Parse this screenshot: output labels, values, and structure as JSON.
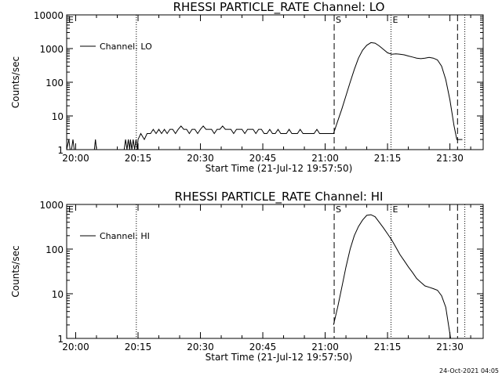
{
  "footer": {
    "timestamp": "24-Oct-2021 04:05"
  },
  "chart_data": [
    {
      "type": "line",
      "title": "RHESSI PARTICLE_RATE Channel: LO",
      "xlabel": "Start Time (21-Jul-12 19:57:50)",
      "ylabel": "Counts/sec",
      "yscale": "log",
      "ylim": [
        1,
        10000
      ],
      "xlim": [
        "19:57:50",
        "21:38:00"
      ],
      "x_ticks": [
        "20:00",
        "20:15",
        "20:30",
        "20:45",
        "21:00",
        "21:15",
        "21:30"
      ],
      "y_ticks": [
        "1",
        "10",
        "100",
        "1000",
        "10000"
      ],
      "legend": {
        "label": "Channel: LO",
        "position": "top-left"
      },
      "markers": [
        {
          "label": "E",
          "time": "19:57:50",
          "style": "dotted"
        },
        {
          "label": "",
          "time": "20:14:35",
          "style": "dotted"
        },
        {
          "label": "S",
          "time": "21:02:10",
          "style": "dashed"
        },
        {
          "label": "E",
          "time": "21:15:50",
          "style": "dotted"
        },
        {
          "label": "",
          "time": "21:31:50",
          "style": "dashed"
        },
        {
          "label": "",
          "time": "21:33:35",
          "style": "dotted"
        }
      ],
      "series": [
        {
          "name": "Channel: LO",
          "points": [
            [
              "19:57:50",
              1
            ],
            [
              "19:58:20",
              2
            ],
            [
              "19:58:40",
              1
            ],
            [
              "19:59:00",
              1
            ],
            [
              "19:59:20",
              2
            ],
            [
              "19:59:40",
              1
            ],
            [
              "20:02:00",
              1
            ],
            [
              "20:04:30",
              1
            ],
            [
              "20:04:45",
              2
            ],
            [
              "20:05:00",
              1
            ],
            [
              "20:11:40",
              1
            ],
            [
              "20:12:00",
              2
            ],
            [
              "20:12:20",
              1
            ],
            [
              "20:12:40",
              2
            ],
            [
              "20:13:00",
              1
            ],
            [
              "20:13:10",
              2
            ],
            [
              "20:13:30",
              1
            ],
            [
              "20:13:50",
              2
            ],
            [
              "20:14:10",
              1
            ],
            [
              "20:14:30",
              2
            ],
            [
              "20:14:50",
              1
            ],
            [
              "20:15:00",
              2
            ],
            [
              "20:15:40",
              3
            ],
            [
              "20:16:30",
              2
            ],
            [
              "20:17:10",
              3
            ],
            [
              "20:18:00",
              3
            ],
            [
              "20:18:40",
              4
            ],
            [
              "20:19:20",
              3
            ],
            [
              "20:20:00",
              4
            ],
            [
              "20:20:40",
              3
            ],
            [
              "20:21:20",
              4
            ],
            [
              "20:22:00",
              3
            ],
            [
              "20:22:40",
              4
            ],
            [
              "20:23:20",
              4
            ],
            [
              "20:24:00",
              3
            ],
            [
              "20:24:40",
              4
            ],
            [
              "20:25:20",
              5
            ],
            [
              "20:26:00",
              4
            ],
            [
              "20:26:40",
              4
            ],
            [
              "20:27:20",
              3
            ],
            [
              "20:28:00",
              4
            ],
            [
              "20:28:40",
              4
            ],
            [
              "20:29:20",
              3
            ],
            [
              "20:30:00",
              4
            ],
            [
              "20:30:40",
              5
            ],
            [
              "20:31:20",
              4
            ],
            [
              "20:32:00",
              4
            ],
            [
              "20:32:40",
              4
            ],
            [
              "20:33:20",
              3
            ],
            [
              "20:34:00",
              4
            ],
            [
              "20:34:40",
              4
            ],
            [
              "20:35:20",
              5
            ],
            [
              "20:36:00",
              4
            ],
            [
              "20:36:40",
              4
            ],
            [
              "20:37:20",
              4
            ],
            [
              "20:38:00",
              3
            ],
            [
              "20:38:40",
              4
            ],
            [
              "20:39:20",
              4
            ],
            [
              "20:40:00",
              4
            ],
            [
              "20:40:40",
              3
            ],
            [
              "20:41:20",
              4
            ],
            [
              "20:42:00",
              4
            ],
            [
              "20:42:40",
              4
            ],
            [
              "20:43:20",
              3
            ],
            [
              "20:44:00",
              4
            ],
            [
              "20:44:40",
              4
            ],
            [
              "20:45:20",
              3
            ],
            [
              "20:46:00",
              3
            ],
            [
              "20:46:40",
              4
            ],
            [
              "20:47:20",
              3
            ],
            [
              "20:48:00",
              3
            ],
            [
              "20:48:40",
              4
            ],
            [
              "20:49:20",
              3
            ],
            [
              "20:50:00",
              3
            ],
            [
              "20:50:40",
              3
            ],
            [
              "20:51:20",
              4
            ],
            [
              "20:52:00",
              3
            ],
            [
              "20:52:40",
              3
            ],
            [
              "20:53:20",
              3
            ],
            [
              "20:54:00",
              4
            ],
            [
              "20:54:40",
              3
            ],
            [
              "20:55:20",
              3
            ],
            [
              "20:56:00",
              3
            ],
            [
              "20:56:40",
              3
            ],
            [
              "20:57:20",
              3
            ],
            [
              "20:58:00",
              4
            ],
            [
              "20:58:40",
              3
            ],
            [
              "20:59:20",
              3
            ],
            [
              "21:00:00",
              3
            ],
            [
              "21:00:40",
              3
            ],
            [
              "21:01:20",
              3
            ],
            [
              "21:02:00",
              3
            ],
            [
              "21:03:00",
              7
            ],
            [
              "21:04:00",
              16
            ],
            [
              "21:05:00",
              40
            ],
            [
              "21:06:00",
              100
            ],
            [
              "21:07:00",
              240
            ],
            [
              "21:08:00",
              520
            ],
            [
              "21:09:00",
              900
            ],
            [
              "21:10:00",
              1250
            ],
            [
              "21:11:00",
              1500
            ],
            [
              "21:12:00",
              1450
            ],
            [
              "21:13:00",
              1200
            ],
            [
              "21:14:00",
              950
            ],
            [
              "21:15:00",
              750
            ],
            [
              "21:16:00",
              680
            ],
            [
              "21:17:00",
              700
            ],
            [
              "21:18:00",
              680
            ],
            [
              "21:19:00",
              650
            ],
            [
              "21:20:00",
              600
            ],
            [
              "21:21:00",
              560
            ],
            [
              "21:22:00",
              520
            ],
            [
              "21:23:00",
              500
            ],
            [
              "21:24:00",
              520
            ],
            [
              "21:25:00",
              550
            ],
            [
              "21:26:00",
              520
            ],
            [
              "21:27:00",
              460
            ],
            [
              "21:28:00",
              300
            ],
            [
              "21:29:00",
              120
            ],
            [
              "21:30:00",
              30
            ],
            [
              "21:31:00",
              5
            ],
            [
              "21:31:40",
              2
            ],
            [
              "21:33:00",
              2
            ]
          ]
        }
      ]
    },
    {
      "type": "line",
      "title": "RHESSI PARTICLE_RATE Channel: HI",
      "xlabel": "Start Time (21-Jul-12 19:57:50)",
      "ylabel": "Counts/sec",
      "yscale": "log",
      "ylim": [
        1,
        1000
      ],
      "xlim": [
        "19:57:50",
        "21:38:00"
      ],
      "x_ticks": [
        "20:00",
        "20:15",
        "20:30",
        "20:45",
        "21:00",
        "21:15",
        "21:30"
      ],
      "y_ticks": [
        "1",
        "10",
        "100",
        "1000"
      ],
      "legend": {
        "label": "Channel: HI",
        "position": "top-left"
      },
      "markers": [
        {
          "label": "E",
          "time": "19:57:50",
          "style": "dotted"
        },
        {
          "label": "",
          "time": "20:14:35",
          "style": "dotted"
        },
        {
          "label": "S",
          "time": "21:02:10",
          "style": "dashed"
        },
        {
          "label": "E",
          "time": "21:15:50",
          "style": "dotted"
        },
        {
          "label": "",
          "time": "21:31:50",
          "style": "dashed"
        },
        {
          "label": "",
          "time": "21:33:35",
          "style": "dotted"
        }
      ],
      "series": [
        {
          "name": "Channel: HI",
          "points": [
            [
              "21:02:00",
              2
            ],
            [
              "21:03:00",
              5
            ],
            [
              "21:04:00",
              14
            ],
            [
              "21:05:00",
              40
            ],
            [
              "21:06:00",
              100
            ],
            [
              "21:07:00",
              200
            ],
            [
              "21:08:00",
              320
            ],
            [
              "21:09:00",
              450
            ],
            [
              "21:10:00",
              570
            ],
            [
              "21:11:00",
              590
            ],
            [
              "21:12:00",
              530
            ],
            [
              "21:13:00",
              400
            ],
            [
              "21:14:00",
              300
            ],
            [
              "21:15:00",
              220
            ],
            [
              "21:16:00",
              160
            ],
            [
              "21:17:00",
              110
            ],
            [
              "21:18:00",
              75
            ],
            [
              "21:19:00",
              55
            ],
            [
              "21:20:00",
              40
            ],
            [
              "21:21:00",
              30
            ],
            [
              "21:22:00",
              22
            ],
            [
              "21:23:00",
              18
            ],
            [
              "21:24:00",
              15
            ],
            [
              "21:25:00",
              14
            ],
            [
              "21:26:00",
              13
            ],
            [
              "21:27:00",
              12
            ],
            [
              "21:28:00",
              9
            ],
            [
              "21:29:00",
              5
            ],
            [
              "21:29:40",
              2
            ],
            [
              "21:30:10",
              1
            ]
          ]
        }
      ]
    }
  ]
}
